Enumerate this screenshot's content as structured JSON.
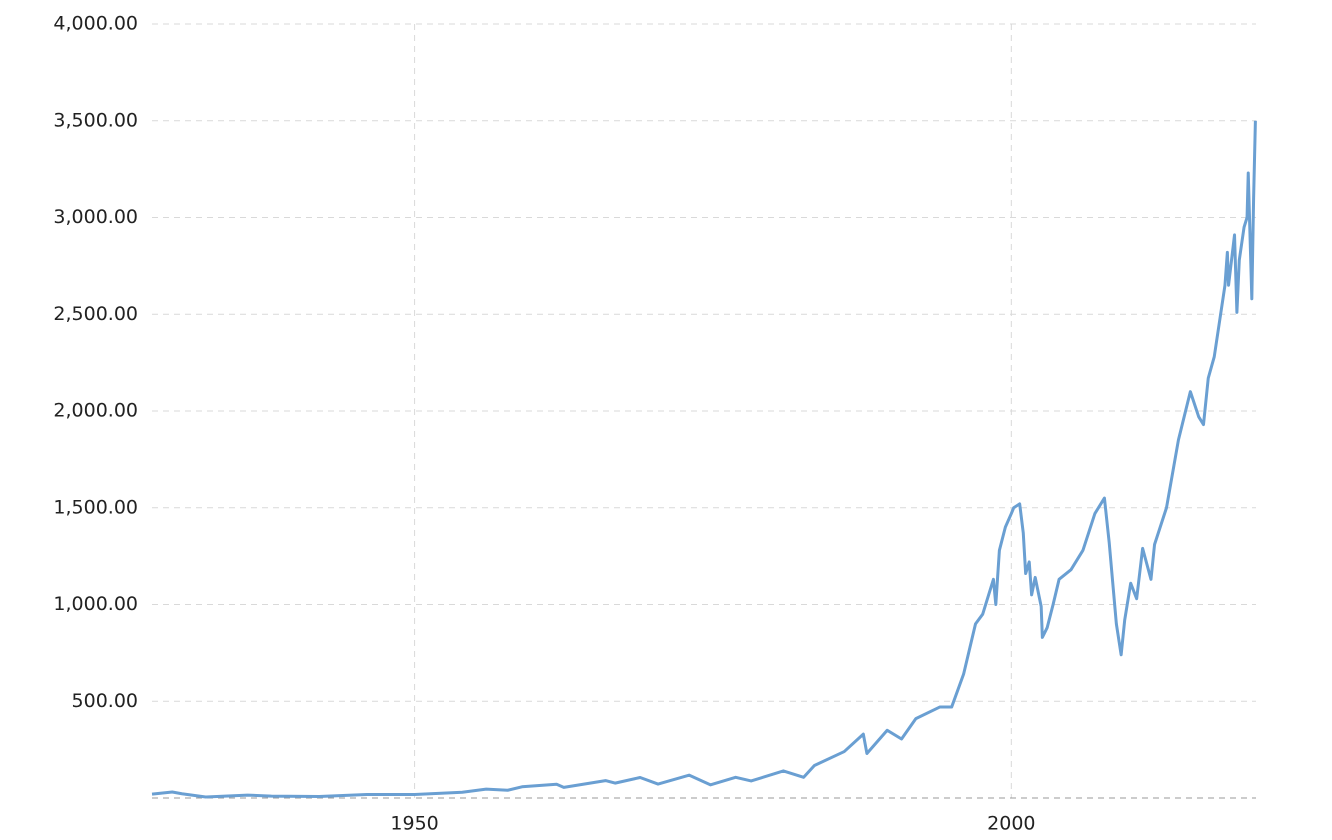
{
  "chart_data": {
    "type": "line",
    "color": "#6a9fd2",
    "grid": true,
    "xlim": [
      1928,
      2020.5
    ],
    "xticks": [
      1950,
      2000
    ],
    "ylim": [
      0,
      4000
    ],
    "yticks": [
      {
        "value": 500,
        "label": "500.00"
      },
      {
        "value": 1000,
        "label": "1,000.00"
      },
      {
        "value": 1500,
        "label": "1,500.00"
      },
      {
        "value": 2000,
        "label": "2,000.00"
      },
      {
        "value": 2500,
        "label": "2,500.00"
      },
      {
        "value": 3000,
        "label": "3,000.00"
      },
      {
        "value": 3500,
        "label": "3,500.00"
      },
      {
        "value": 4000,
        "label": "4,000.00"
      }
    ],
    "x": [
      1928,
      1929.7,
      1930.5,
      1932.5,
      1936,
      1938,
      1942,
      1946,
      1950,
      1954,
      1956,
      1957.8,
      1959,
      1961.9,
      1962.5,
      1966,
      1966.8,
      1968.9,
      1970.4,
      1973,
      1974.8,
      1976.9,
      1978.2,
      1980.9,
      1982.6,
      1983.5,
      1986,
      1987.6,
      1987.9,
      1989.6,
      1990.8,
      1992,
      1994,
      1995,
      1996,
      1997,
      1997.6,
      1998.5,
      1998.7,
      1999,
      1999.5,
      2000,
      2000.2,
      2000.7,
      2001,
      2001.2,
      2001.5,
      2001.7,
      2002,
      2002.5,
      2002.6,
      2003,
      2003.5,
      2004,
      2005,
      2006,
      2007,
      2007.8,
      2008.2,
      2008.8,
      2009.2,
      2009.5,
      2010,
      2010.5,
      2011,
      2011.7,
      2012,
      2013,
      2014,
      2015,
      2015.7,
      2016.1,
      2016.5,
      2017,
      2017.9,
      2018.1,
      2018.2,
      2018.7,
      2018.9,
      2019.1,
      2019.5,
      2019.75,
      2019.85,
      2020.15,
      2020.3,
      2020.45
    ],
    "values": [
      20,
      31,
      22,
      5,
      15,
      10,
      8,
      18,
      18,
      30,
      46,
      40,
      58,
      71,
      55,
      90,
      77,
      106,
      72,
      118,
      68,
      107,
      88,
      140,
      107,
      168,
      240,
      330,
      230,
      350,
      305,
      410,
      470,
      470,
      640,
      900,
      950,
      1130,
      1000,
      1280,
      1400,
      1470,
      1500,
      1520,
      1370,
      1160,
      1220,
      1050,
      1140,
      990,
      830,
      880,
      1000,
      1130,
      1180,
      1280,
      1470,
      1550,
      1320,
      900,
      740,
      920,
      1110,
      1030,
      1290,
      1130,
      1310,
      1500,
      1850,
      2100,
      1970,
      1930,
      2170,
      2280,
      2650,
      2820,
      2650,
      2910,
      2510,
      2780,
      2950,
      3000,
      3230,
      2580,
      3100,
      3500
    ]
  }
}
